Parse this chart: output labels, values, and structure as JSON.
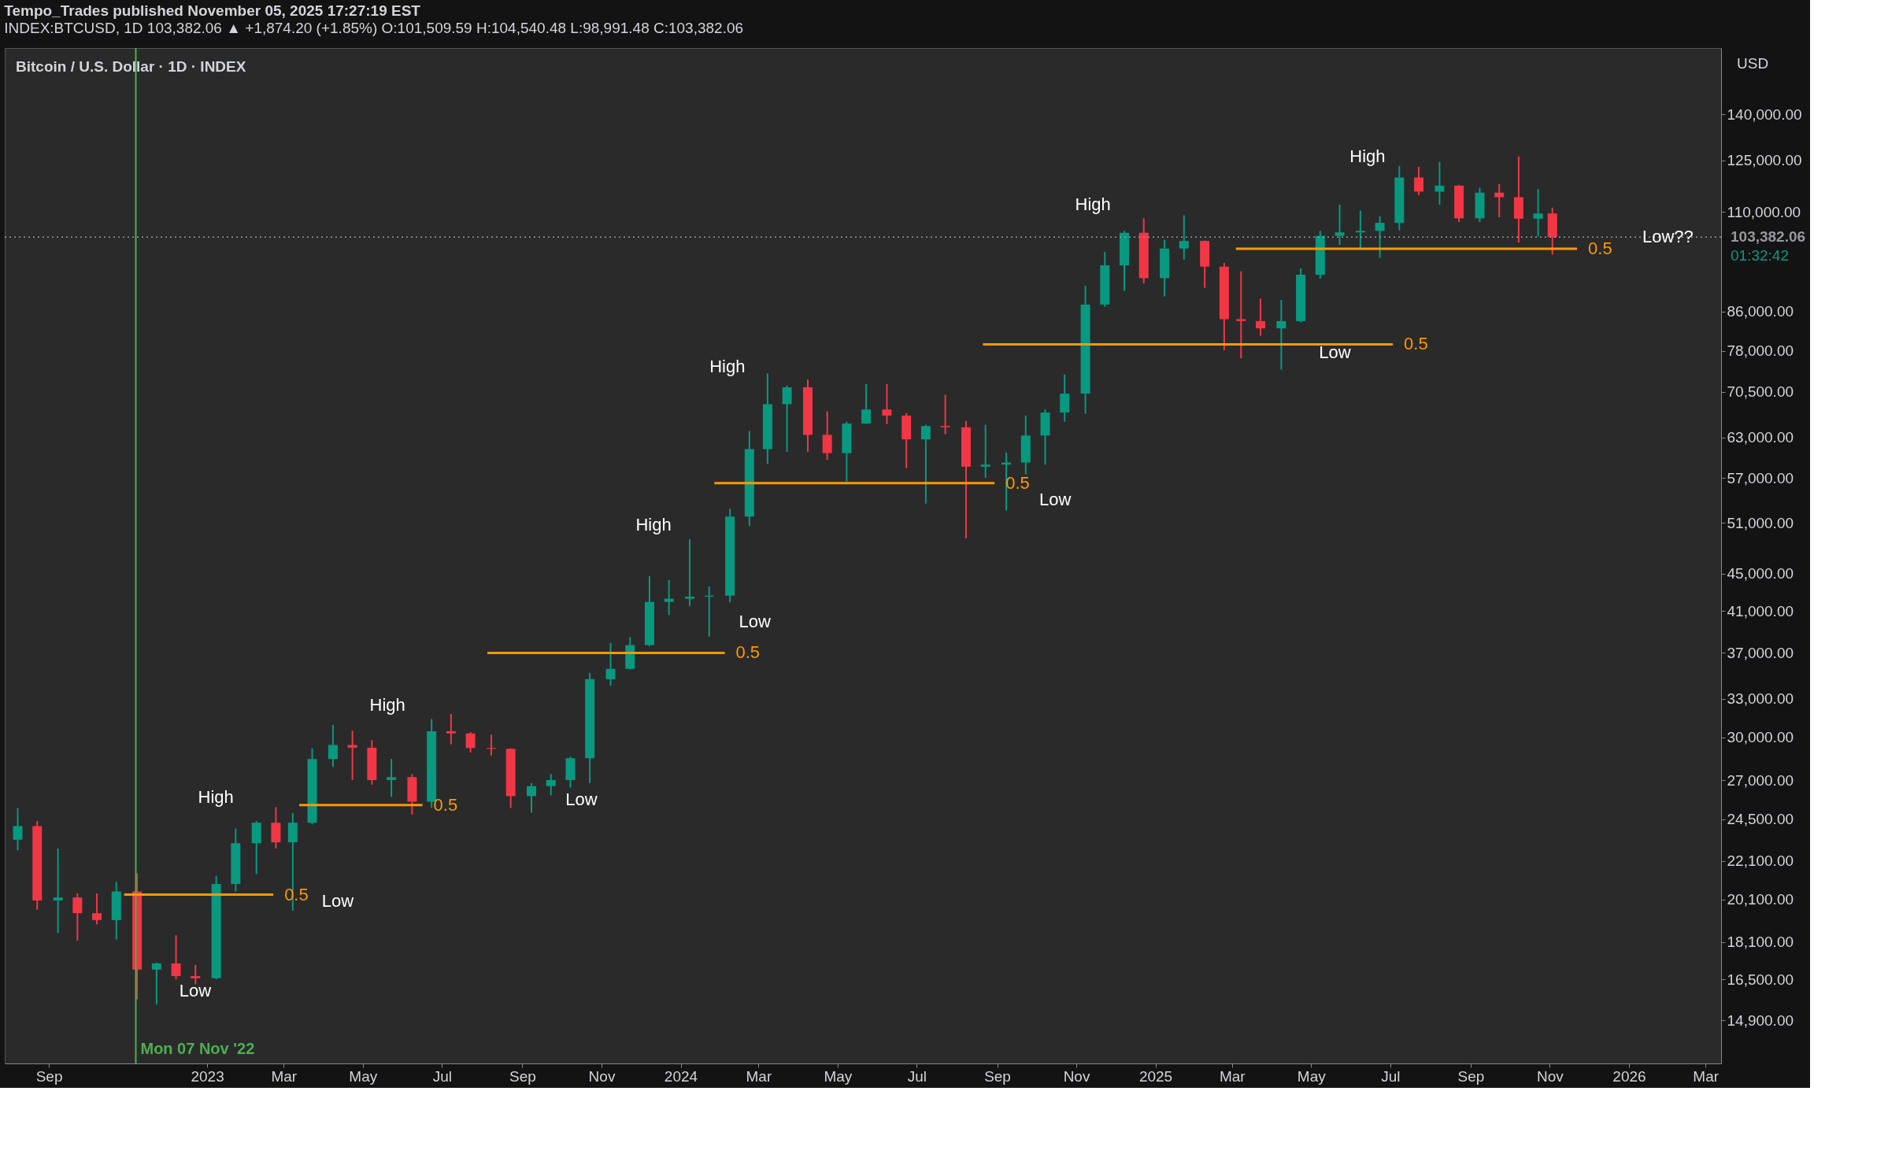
{
  "chart_data": {
    "type": "candlestick",
    "title": "Tempo_Trades published November 05, 2025 17:27:19 EST",
    "subtitle": "INDEX:BTCUSD, 1D 103,382.06 ▲ +1,874.20 (+1.85%) O:101,509.59 H:104,540.48 L:98,991.48 C:103,382.06",
    "log": true,
    "xlim": [
      "2022-08-01",
      "2026-03-10"
    ],
    "ylim": [
      13400,
      165000
    ],
    "xticks": [
      {
        "value": "2022-09-01",
        "label": "Sep"
      },
      {
        "value": "2023-01-01",
        "label": "2023"
      },
      {
        "value": "2023-03-01",
        "label": "Mar"
      },
      {
        "value": "2023-05-01",
        "label": "May"
      },
      {
        "value": "2023-07-01",
        "label": "Jul"
      },
      {
        "value": "2023-09-01",
        "label": "Sep"
      },
      {
        "value": "2023-11-01",
        "label": "Nov"
      },
      {
        "value": "2024-01-01",
        "label": "2024"
      },
      {
        "value": "2024-03-01",
        "label": "Mar"
      },
      {
        "value": "2024-05-01",
        "label": "May"
      },
      {
        "value": "2024-07-01",
        "label": "Jul"
      },
      {
        "value": "2024-09-01",
        "label": "Sep"
      },
      {
        "value": "2024-11-01",
        "label": "Nov"
      },
      {
        "value": "2025-01-01",
        "label": "2025"
      },
      {
        "value": "2025-03-01",
        "label": "Mar"
      },
      {
        "value": "2025-05-01",
        "label": "May"
      },
      {
        "value": "2025-07-01",
        "label": "Jul"
      },
      {
        "value": "2025-09-01",
        "label": "Sep"
      },
      {
        "value": "2025-11-01",
        "label": "Nov"
      },
      {
        "value": "2026-01-01",
        "label": "2026"
      },
      {
        "value": "2026-03-01",
        "label": "Mar"
      }
    ],
    "yticks": [
      {
        "value": 14900,
        "label": "14,900.00"
      },
      {
        "value": 16500,
        "label": "16,500.00"
      },
      {
        "value": 18100,
        "label": "18,100.00"
      },
      {
        "value": 20100,
        "label": "20,100.00"
      },
      {
        "value": 22100,
        "label": "22,100.00"
      },
      {
        "value": 24500,
        "label": "24,500.00"
      },
      {
        "value": 27000,
        "label": "27,000.00"
      },
      {
        "value": 30000,
        "label": "30,000.00"
      },
      {
        "value": 33000,
        "label": "33,000.00"
      },
      {
        "value": 37000,
        "label": "37,000.00"
      },
      {
        "value": 41000,
        "label": "41,000.00"
      },
      {
        "value": 45000,
        "label": "45,000.00"
      },
      {
        "value": 51000,
        "label": "51,000.00"
      },
      {
        "value": 57000,
        "label": "57,000.00"
      },
      {
        "value": 63000,
        "label": "63,000.00"
      },
      {
        "value": 70500,
        "label": "70,500.00"
      },
      {
        "value": 78000,
        "label": "78,000.00"
      },
      {
        "value": 86000,
        "label": "86,000.00"
      },
      {
        "value": 110000,
        "label": "110,000.00"
      },
      {
        "value": 125000,
        "label": "125,000.00"
      },
      {
        "value": 140000,
        "label": "140,000.00"
      }
    ],
    "x": [
      "2022-08-08",
      "2022-08-23",
      "2022-09-08",
      "2022-09-23",
      "2022-10-08",
      "2022-10-23",
      "2022-11-08",
      "2022-11-23",
      "2022-12-08",
      "2022-12-23",
      "2023-01-08",
      "2023-01-23",
      "2023-02-08",
      "2023-02-23",
      "2023-03-08",
      "2023-03-23",
      "2023-04-08",
      "2023-04-23",
      "2023-05-08",
      "2023-05-23",
      "2023-06-08",
      "2023-06-23",
      "2023-07-08",
      "2023-07-23",
      "2023-08-08",
      "2023-08-23",
      "2023-09-08",
      "2023-09-23",
      "2023-10-08",
      "2023-10-23",
      "2023-11-08",
      "2023-11-23",
      "2023-12-08",
      "2023-12-23",
      "2024-01-08",
      "2024-01-23",
      "2024-02-08",
      "2024-02-23",
      "2024-03-08",
      "2024-03-23",
      "2024-04-08",
      "2024-04-23",
      "2024-05-08",
      "2024-05-23",
      "2024-06-08",
      "2024-06-23",
      "2024-07-08",
      "2024-07-23",
      "2024-08-08",
      "2024-08-23",
      "2024-09-08",
      "2024-09-23",
      "2024-10-08",
      "2024-10-23",
      "2024-11-08",
      "2024-11-23",
      "2024-12-08",
      "2024-12-23",
      "2025-01-08",
      "2025-01-23",
      "2025-02-08",
      "2025-02-23",
      "2025-03-08",
      "2025-03-23",
      "2025-04-08",
      "2025-04-23",
      "2025-05-08",
      "2025-05-23",
      "2025-06-08",
      "2025-06-23",
      "2025-07-08",
      "2025-07-23",
      "2025-08-08",
      "2025-08-23",
      "2025-09-08",
      "2025-09-23",
      "2025-10-08",
      "2025-10-23",
      "2025-11-03"
    ],
    "ohlc": [
      [
        23300,
        25200,
        22700,
        24100
      ],
      [
        24100,
        24400,
        19600,
        20050
      ],
      [
        20050,
        22800,
        18500,
        20200
      ],
      [
        20200,
        20400,
        18150,
        19430
      ],
      [
        19430,
        20400,
        18900,
        19100
      ],
      [
        19100,
        21000,
        18200,
        20500
      ],
      [
        20500,
        21450,
        15700,
        16900
      ],
      [
        16900,
        17200,
        15500,
        17160
      ],
      [
        17160,
        18400,
        16500,
        16630
      ],
      [
        16630,
        17100,
        16300,
        16540
      ],
      [
        16540,
        21300,
        16500,
        20880
      ],
      [
        20880,
        23950,
        20500,
        23100
      ],
      [
        23100,
        24400,
        21400,
        24300
      ],
      [
        24300,
        25250,
        22800,
        23150
      ],
      [
        23150,
        24900,
        19550,
        24300
      ],
      [
        24300,
        29200,
        24200,
        28450
      ],
      [
        28450,
        30950,
        27900,
        29450
      ],
      [
        29450,
        30500,
        27000,
        29250
      ],
      [
        29250,
        29800,
        26700,
        27000
      ],
      [
        27000,
        28450,
        25900,
        27200
      ],
      [
        27200,
        27400,
        24800,
        25600
      ],
      [
        25600,
        31400,
        25200,
        30470
      ],
      [
        30470,
        31800,
        29500,
        30300
      ],
      [
        30300,
        30400,
        28900,
        29230
      ],
      [
        29230,
        30200,
        28700,
        29170
      ],
      [
        29170,
        29200,
        25200,
        25950
      ],
      [
        25950,
        26800,
        24900,
        26600
      ],
      [
        26600,
        27400,
        26000,
        27000
      ],
      [
        27000,
        28600,
        26500,
        28500
      ],
      [
        28500,
        35200,
        26800,
        34650
      ],
      [
        34650,
        37900,
        34100,
        35550
      ],
      [
        35550,
        38450,
        35500,
        37700
      ],
      [
        37700,
        44700,
        37600,
        41950
      ],
      [
        41950,
        44300,
        40600,
        42280
      ],
      [
        42280,
        48970,
        41500,
        42500
      ],
      [
        42500,
        43600,
        38500,
        42600
      ],
      [
        42600,
        52800,
        41900,
        51800
      ],
      [
        51800,
        64000,
        50600,
        61200
      ],
      [
        61200,
        73800,
        59000,
        68400
      ],
      [
        68400,
        71600,
        60800,
        71300
      ],
      [
        71300,
        72700,
        60800,
        63400
      ],
      [
        63400,
        67200,
        59600,
        60600
      ],
      [
        60600,
        65500,
        56500,
        65200
      ],
      [
        65200,
        71900,
        65100,
        67500
      ],
      [
        67500,
        71900,
        65100,
        66500
      ],
      [
        66500,
        66900,
        58400,
        62700
      ],
      [
        62700,
        65000,
        53500,
        64800
      ],
      [
        64800,
        70000,
        63500,
        64600
      ],
      [
        64600,
        65600,
        49100,
        58600
      ],
      [
        58600,
        65000,
        57000,
        58900
      ],
      [
        58900,
        60700,
        52600,
        59200
      ],
      [
        59200,
        66500,
        57500,
        63300
      ],
      [
        63300,
        67500,
        58900,
        67000
      ],
      [
        67000,
        73600,
        65500,
        70200
      ],
      [
        70200,
        91700,
        66800,
        87500
      ],
      [
        87500,
        99600,
        87000,
        96400
      ],
      [
        96400,
        105000,
        90500,
        104500
      ],
      [
        104500,
        108300,
        92200,
        93400
      ],
      [
        93400,
        102700,
        89300,
        100500
      ],
      [
        100500,
        109100,
        97800,
        102400
      ],
      [
        102400,
        102500,
        91200,
        96100
      ],
      [
        96100,
        97000,
        78200,
        84400
      ],
      [
        84400,
        95000,
        76600,
        84000
      ],
      [
        84000,
        88800,
        81000,
        82500
      ],
      [
        82500,
        88500,
        74500,
        84000
      ],
      [
        84000,
        95700,
        83700,
        94200
      ],
      [
        94200,
        105000,
        93300,
        103700
      ],
      [
        103700,
        112000,
        101400,
        104600
      ],
      [
        104600,
        110400,
        100400,
        105000
      ],
      [
        105000,
        108900,
        98200,
        107100
      ],
      [
        107100,
        123200,
        105100,
        119800
      ],
      [
        119800,
        123000,
        114700,
        115700
      ],
      [
        115700,
        124500,
        112000,
        117400
      ],
      [
        117400,
        117600,
        107300,
        108300
      ],
      [
        108300,
        116800,
        107300,
        115400
      ],
      [
        115400,
        117900,
        108600,
        114100
      ],
      [
        114100,
        126200,
        102000,
        108200
      ],
      [
        108200,
        116400,
        103500,
        109600
      ],
      [
        109600,
        111200,
        98990,
        103382.06
      ]
    ],
    "colors": [
      "#089981",
      "#f23645",
      "#089981",
      "#f23645",
      "#f23645",
      "#089981",
      "#f23645",
      "#089981",
      "#f23645",
      "#f23645",
      "#089981",
      "#089981",
      "#089981",
      "#f23645",
      "#089981",
      "#089981",
      "#089981",
      "#f23645",
      "#f23645",
      "#089981",
      "#f23645",
      "#089981",
      "#f23645",
      "#f23645",
      "#f23645",
      "#f23645",
      "#089981",
      "#089981",
      "#089981",
      "#089981",
      "#089981",
      "#089981",
      "#089981",
      "#089981",
      "#089981",
      "#089981",
      "#089981",
      "#089981",
      "#089981",
      "#089981",
      "#f23645",
      "#f23645",
      "#089981",
      "#089981",
      "#f23645",
      "#f23645",
      "#089981",
      "#f23645",
      "#f23645",
      "#089981",
      "#089981",
      "#089981",
      "#089981",
      "#089981",
      "#089981",
      "#089981",
      "#089981",
      "#f23645",
      "#089981",
      "#089981",
      "#f23645",
      "#f23645",
      "#f23645",
      "#f23645",
      "#089981",
      "#089981",
      "#089981",
      "#089981",
      "#089981",
      "#089981",
      "#089981",
      "#f23645",
      "#089981",
      "#f23645",
      "#089981",
      "#f23645",
      "#f23645",
      "#089981",
      "#f23645"
    ],
    "series": [
      {
        "type": "line",
        "name": "0.5",
        "color": "#ff9800",
        "x": [
          "2022-10-29",
          "2023-02-21"
        ],
        "values": [
          20340,
          20340
        ]
      },
      {
        "type": "line",
        "name": "0.5",
        "color": "#ff9800",
        "x": [
          "2023-03-13",
          "2023-06-16"
        ],
        "values": [
          25390,
          25390
        ]
      },
      {
        "type": "line",
        "name": "0.5",
        "color": "#ff9800",
        "x": [
          "2023-08-05",
          "2024-02-04"
        ],
        "values": [
          36980,
          36980
        ]
      },
      {
        "type": "line",
        "name": "0.5",
        "color": "#ff9800",
        "x": [
          "2024-01-27",
          "2024-08-30"
        ],
        "values": [
          56260,
          56260
        ]
      },
      {
        "type": "line",
        "name": "0.5",
        "color": "#ff9800",
        "x": [
          "2024-08-21",
          "2025-07-03"
        ],
        "values": [
          79310,
          79310
        ]
      },
      {
        "type": "line",
        "name": "0.5",
        "color": "#ff9800",
        "x": [
          "2025-03-04",
          "2025-11-22"
        ],
        "values": [
          100440,
          100440
        ]
      }
    ],
    "ref_lines": [
      {
        "axis": "x",
        "value": "2022-11-07",
        "label": "Mon 07 Nov '22",
        "color": "#4caf50",
        "line_style": "solid"
      },
      {
        "axis": "y",
        "value": 103382.06,
        "label": "103,382.06",
        "color": "#9598a1",
        "line_style": "dotted"
      }
    ],
    "annotations": [
      "Bitcoin / U.S. Dollar · 1D · INDEX",
      "USD",
      "01:32:42",
      "High",
      "Low",
      "Low",
      "High",
      "Low",
      "High",
      "Low",
      "High",
      "Low",
      "High",
      "Low",
      "High",
      "Low??"
    ]
  }
}
